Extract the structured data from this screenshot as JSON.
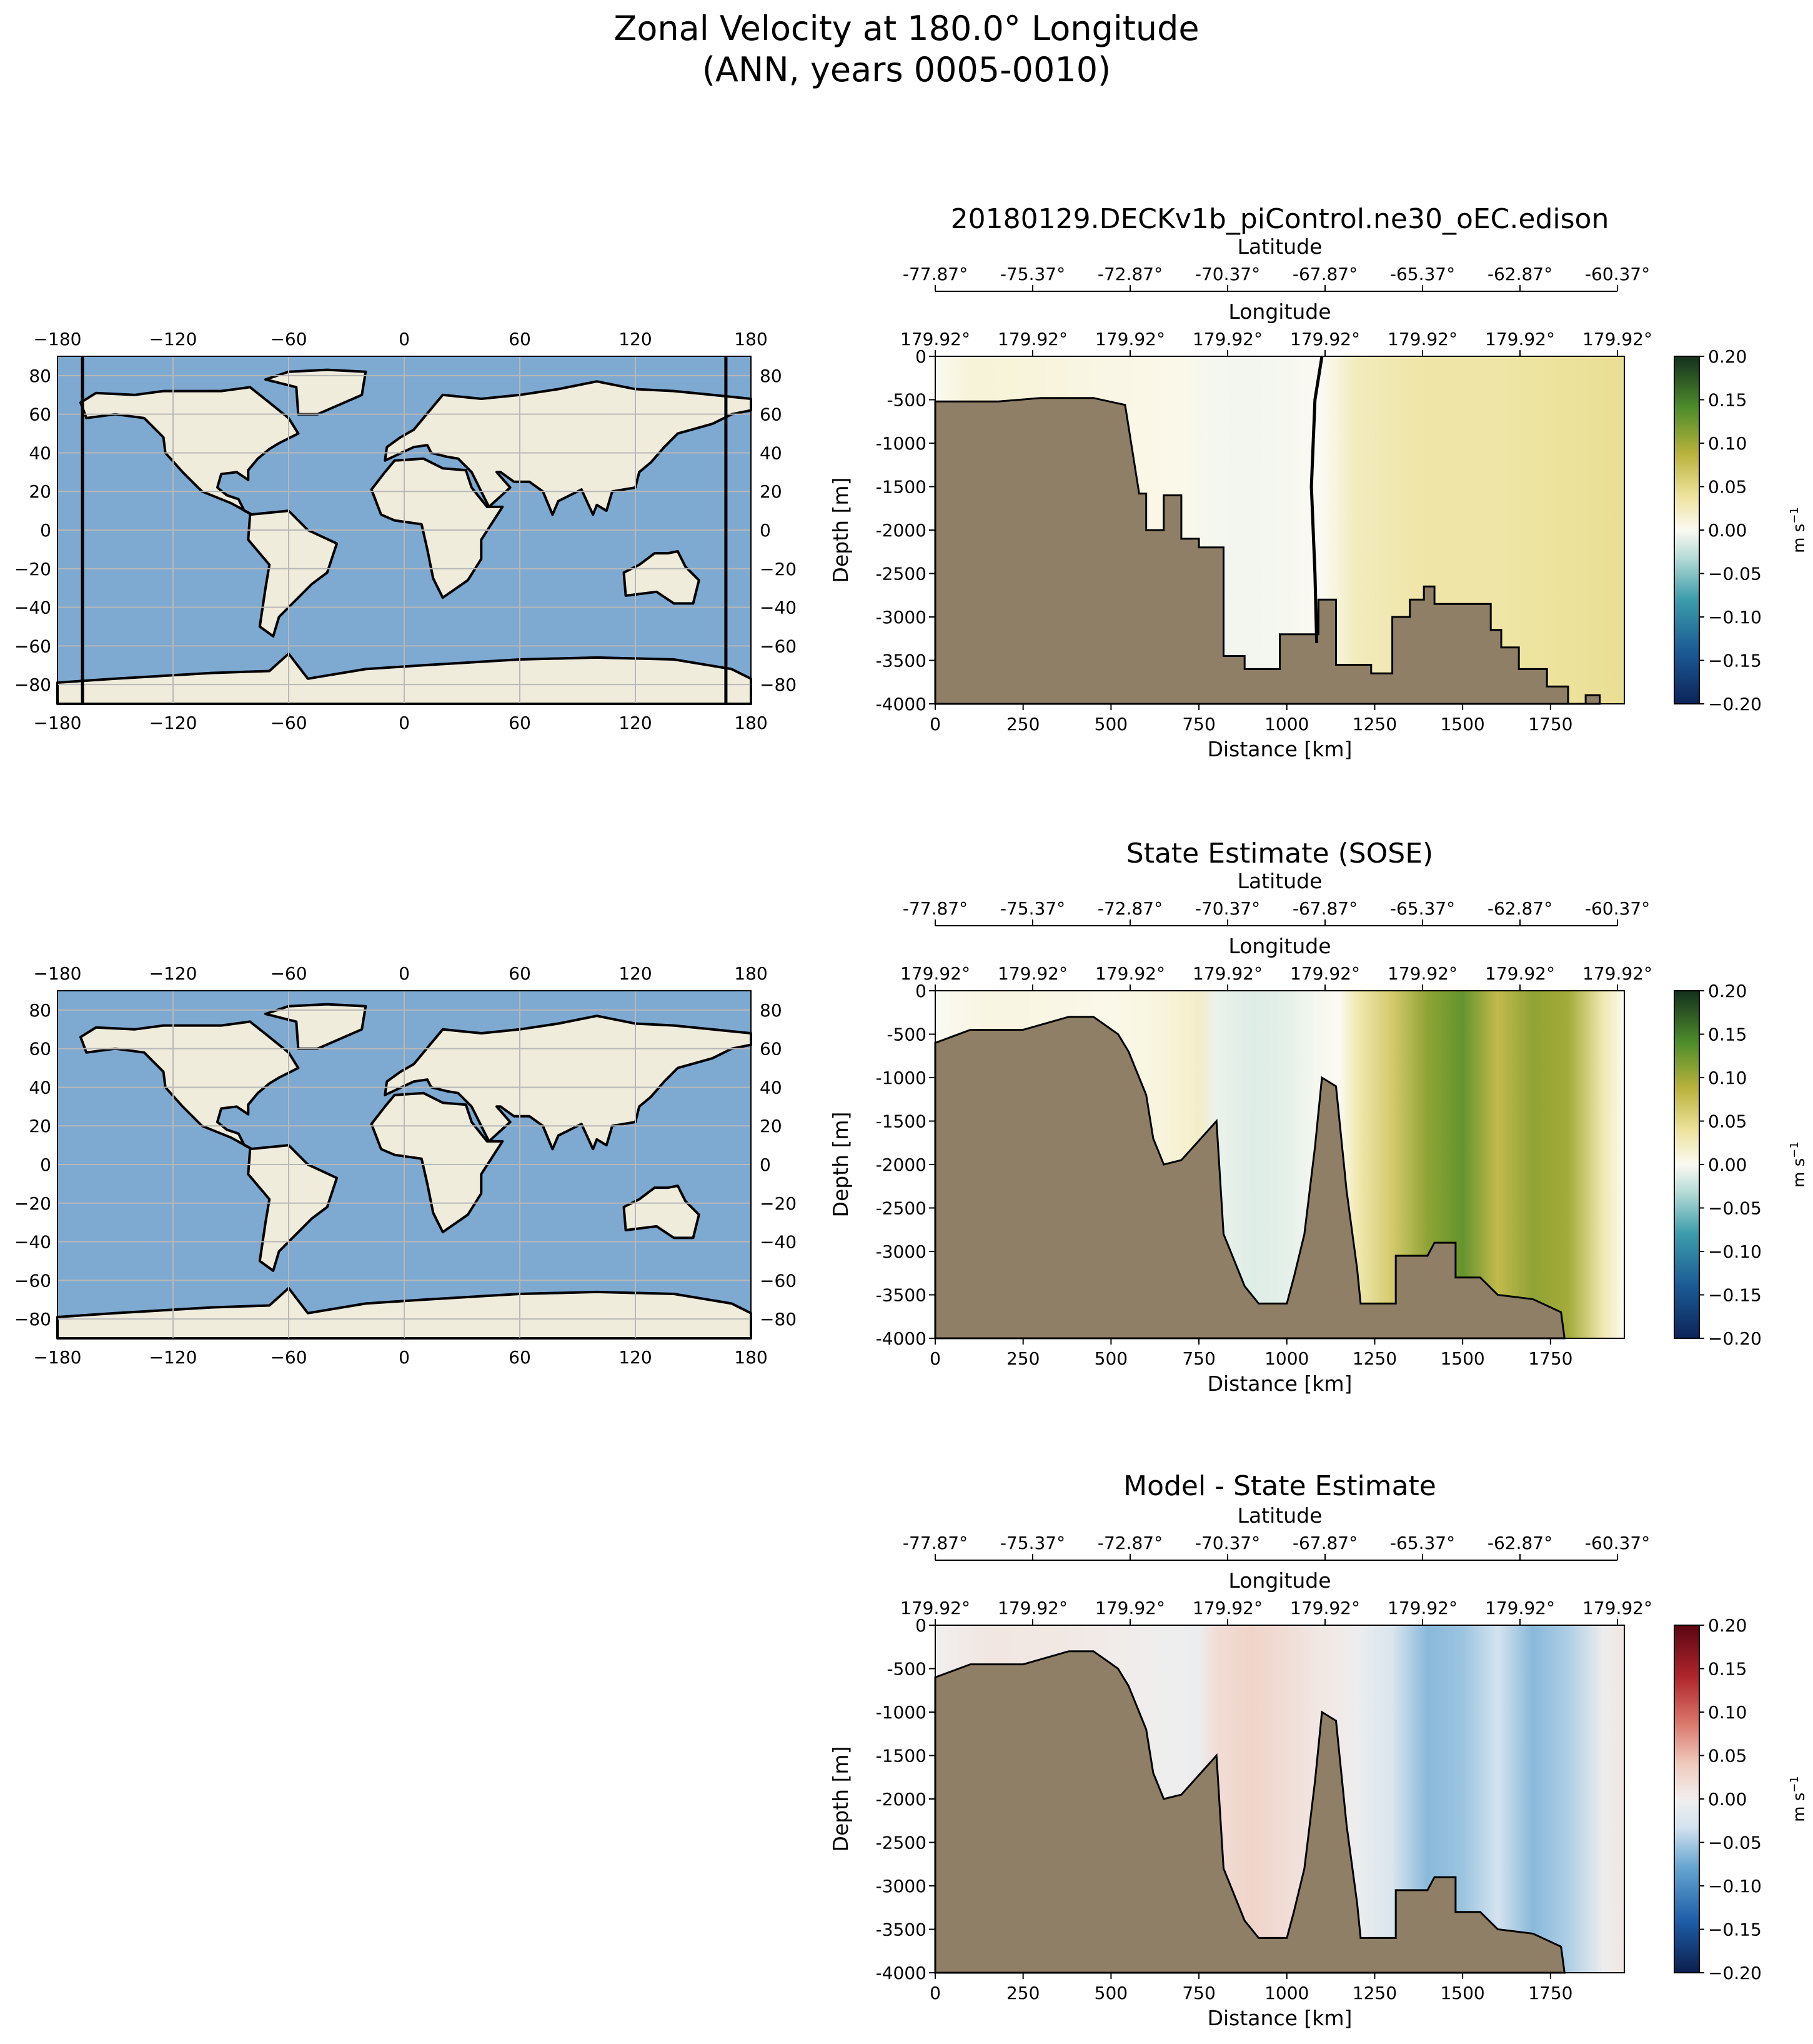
{
  "figure": {
    "title_line1": "Zonal Velocity at 180.0° Longitude",
    "title_line2": "(ANN, years 0005-0010)"
  },
  "maps": {
    "lon_ticks": [
      "−180",
      "−120",
      "−60",
      "0",
      "60",
      "120",
      "180"
    ],
    "lat_ticks": [
      "80",
      "60",
      "40",
      "20",
      "0",
      "−20",
      "−40",
      "−60",
      "−80"
    ],
    "colors": {
      "ocean": "#7ea9d1",
      "land": "#efecdc",
      "grid": "#b8b8b8"
    },
    "section_line_lon": [
      -167,
      167
    ]
  },
  "colorbar": {
    "unit_label": "m s",
    "unit_sup": "−1",
    "ticks": [
      "0.20",
      "0.15",
      "0.10",
      "0.05",
      "0.00",
      "−0.05",
      "−0.10",
      "−0.15",
      "−0.20"
    ]
  },
  "section_axes": {
    "latitude_label": "Latitude",
    "longitude_label": "Longitude",
    "depth_label": "Depth [m]",
    "distance_label": "Distance [km]",
    "latitude_ticks": [
      "-77.87°",
      "-75.37°",
      "-72.87°",
      "-70.37°",
      "-67.87°",
      "-65.37°",
      "-62.87°",
      "-60.37°"
    ],
    "longitude_ticks": [
      "179.92°",
      "179.92°",
      "179.92°",
      "179.92°",
      "179.92°",
      "179.92°",
      "179.92°",
      "179.92°"
    ],
    "depth_ticks": [
      "0",
      "-500",
      "-1000",
      "-1500",
      "-2000",
      "-2500",
      "-3000",
      "-3500",
      "-4000"
    ],
    "distance_ticks": [
      "0",
      "250",
      "500",
      "750",
      "1000",
      "1250",
      "1500",
      "1750"
    ],
    "colors": {
      "bathymetry": "#8e7f66"
    }
  },
  "chart_data": [
    {
      "type": "heatmap",
      "title": "20180129.DECKv1b_piControl.ne30_oEC.edison",
      "xlabel": "Distance [km]",
      "ylabel": "Depth [m]",
      "xlim": [
        0,
        1960
      ],
      "ylim": [
        -4000,
        0
      ],
      "colorbar": "BrBG-like",
      "vlim": [
        -0.2,
        0.2
      ],
      "latitude_range": [
        -77.87,
        -60.37
      ],
      "bathymetry_depth_m": [
        [
          0,
          -520
        ],
        [
          180,
          -520
        ],
        [
          300,
          -480
        ],
        [
          450,
          -480
        ],
        [
          540,
          -560
        ],
        [
          580,
          -1580
        ],
        [
          600,
          -1580
        ],
        [
          600,
          -2000
        ],
        [
          650,
          -2000
        ],
        [
          650,
          -1600
        ],
        [
          700,
          -1600
        ],
        [
          700,
          -2100
        ],
        [
          750,
          -2100
        ],
        [
          750,
          -2200
        ],
        [
          820,
          -2200
        ],
        [
          820,
          -3450
        ],
        [
          880,
          -3450
        ],
        [
          880,
          -3600
        ],
        [
          980,
          -3600
        ],
        [
          980,
          -3200
        ],
        [
          1090,
          -3200
        ],
        [
          1090,
          -2800
        ],
        [
          1140,
          -2800
        ],
        [
          1140,
          -3550
        ],
        [
          1240,
          -3550
        ],
        [
          1240,
          -3650
        ],
        [
          1300,
          -3650
        ],
        [
          1300,
          -3000
        ],
        [
          1350,
          -3000
        ],
        [
          1350,
          -2800
        ],
        [
          1390,
          -2800
        ],
        [
          1390,
          -2650
        ],
        [
          1420,
          -2650
        ],
        [
          1420,
          -2850
        ],
        [
          1580,
          -2850
        ],
        [
          1580,
          -3150
        ],
        [
          1610,
          -3150
        ],
        [
          1610,
          -3350
        ],
        [
          1660,
          -3350
        ],
        [
          1660,
          -3600
        ],
        [
          1740,
          -3600
        ],
        [
          1740,
          -3800
        ],
        [
          1800,
          -3800
        ],
        [
          1800,
          -4000
        ],
        [
          1850,
          -4000
        ],
        [
          1850,
          -3900
        ],
        [
          1890,
          -3900
        ],
        [
          1890,
          -4000
        ]
      ],
      "zero_contour": [
        [
          1100,
          0
        ],
        [
          1080,
          -500
        ],
        [
          1070,
          -1500
        ],
        [
          1080,
          -2500
        ],
        [
          1085,
          -3300
        ]
      ],
      "velocity_profile": [
        [
          0,
          0.0
        ],
        [
          100,
          0.012
        ],
        [
          300,
          0.01
        ],
        [
          500,
          0.006
        ],
        [
          700,
          0.004
        ],
        [
          800,
          -0.006
        ],
        [
          900,
          -0.008
        ],
        [
          1000,
          -0.004
        ],
        [
          1100,
          0.0
        ],
        [
          1200,
          0.025
        ],
        [
          1400,
          0.035
        ],
        [
          1600,
          0.035
        ],
        [
          1800,
          0.04
        ],
        [
          1960,
          0.045
        ]
      ]
    },
    {
      "type": "heatmap",
      "title": "State Estimate (SOSE)",
      "xlabel": "Distance [km]",
      "ylabel": "Depth [m]",
      "xlim": [
        0,
        1960
      ],
      "ylim": [
        -4000,
        0
      ],
      "colorbar": "BrBG-like",
      "vlim": [
        -0.2,
        0.2
      ],
      "latitude_range": [
        -77.87,
        -60.37
      ],
      "bathymetry_depth_m": [
        [
          0,
          -600
        ],
        [
          100,
          -450
        ],
        [
          250,
          -450
        ],
        [
          380,
          -300
        ],
        [
          450,
          -300
        ],
        [
          520,
          -500
        ],
        [
          550,
          -700
        ],
        [
          600,
          -1200
        ],
        [
          620,
          -1700
        ],
        [
          650,
          -2000
        ],
        [
          700,
          -1950
        ],
        [
          800,
          -1500
        ],
        [
          820,
          -2800
        ],
        [
          860,
          -3200
        ],
        [
          880,
          -3400
        ],
        [
          920,
          -3600
        ],
        [
          1000,
          -3600
        ],
        [
          1020,
          -3300
        ],
        [
          1050,
          -2800
        ],
        [
          1080,
          -1800
        ],
        [
          1100,
          -1000
        ],
        [
          1140,
          -1100
        ],
        [
          1170,
          -2300
        ],
        [
          1200,
          -3200
        ],
        [
          1210,
          -3600
        ],
        [
          1310,
          -3600
        ],
        [
          1310,
          -3050
        ],
        [
          1400,
          -3050
        ],
        [
          1420,
          -2900
        ],
        [
          1480,
          -2900
        ],
        [
          1480,
          -3300
        ],
        [
          1550,
          -3300
        ],
        [
          1600,
          -3500
        ],
        [
          1700,
          -3550
        ],
        [
          1780,
          -3700
        ],
        [
          1790,
          -4000
        ]
      ],
      "velocity_profile": [
        [
          0,
          0.0
        ],
        [
          150,
          0.008
        ],
        [
          350,
          0.006
        ],
        [
          500,
          0.004
        ],
        [
          650,
          0.01
        ],
        [
          750,
          0.02
        ],
        [
          800,
          -0.015
        ],
        [
          900,
          -0.025
        ],
        [
          1000,
          -0.02
        ],
        [
          1080,
          -0.005
        ],
        [
          1150,
          0.0
        ],
        [
          1200,
          0.03
        ],
        [
          1300,
          0.07
        ],
        [
          1400,
          0.12
        ],
        [
          1500,
          0.14
        ],
        [
          1600,
          0.09
        ],
        [
          1700,
          0.12
        ],
        [
          1800,
          0.11
        ],
        [
          1900,
          0.03
        ],
        [
          1960,
          0.0
        ]
      ]
    },
    {
      "type": "heatmap",
      "title": "Model - State Estimate",
      "xlabel": "Distance [km]",
      "ylabel": "Depth [m]",
      "xlim": [
        0,
        1960
      ],
      "ylim": [
        -4000,
        0
      ],
      "colorbar": "RdBu_r-like",
      "vlim": [
        -0.2,
        0.2
      ],
      "latitude_range": [
        -77.87,
        -60.37
      ],
      "bathymetry_depth_m": [
        [
          0,
          -600
        ],
        [
          100,
          -450
        ],
        [
          250,
          -450
        ],
        [
          380,
          -300
        ],
        [
          450,
          -300
        ],
        [
          520,
          -500
        ],
        [
          550,
          -700
        ],
        [
          600,
          -1200
        ],
        [
          620,
          -1700
        ],
        [
          650,
          -2000
        ],
        [
          700,
          -1950
        ],
        [
          800,
          -1500
        ],
        [
          820,
          -2800
        ],
        [
          860,
          -3200
        ],
        [
          880,
          -3400
        ],
        [
          920,
          -3600
        ],
        [
          1000,
          -3600
        ],
        [
          1020,
          -3300
        ],
        [
          1050,
          -2800
        ],
        [
          1080,
          -1800
        ],
        [
          1100,
          -1000
        ],
        [
          1140,
          -1100
        ],
        [
          1170,
          -2300
        ],
        [
          1200,
          -3200
        ],
        [
          1210,
          -3600
        ],
        [
          1310,
          -3600
        ],
        [
          1310,
          -3050
        ],
        [
          1400,
          -3050
        ],
        [
          1420,
          -2900
        ],
        [
          1480,
          -2900
        ],
        [
          1480,
          -3300
        ],
        [
          1550,
          -3300
        ],
        [
          1600,
          -3500
        ],
        [
          1700,
          -3550
        ],
        [
          1780,
          -3700
        ],
        [
          1790,
          -4000
        ]
      ],
      "velocity_profile": [
        [
          0,
          0.0
        ],
        [
          150,
          0.01
        ],
        [
          350,
          0.008
        ],
        [
          500,
          0.004
        ],
        [
          650,
          -0.004
        ],
        [
          750,
          -0.01
        ],
        [
          800,
          0.02
        ],
        [
          900,
          0.03
        ],
        [
          1000,
          0.02
        ],
        [
          1080,
          0.01
        ],
        [
          1150,
          0.005
        ],
        [
          1200,
          -0.01
        ],
        [
          1300,
          -0.05
        ],
        [
          1400,
          -0.1
        ],
        [
          1500,
          -0.09
        ],
        [
          1600,
          -0.06
        ],
        [
          1700,
          -0.1
        ],
        [
          1800,
          -0.08
        ],
        [
          1900,
          -0.01
        ],
        [
          1960,
          0.01
        ]
      ]
    }
  ]
}
